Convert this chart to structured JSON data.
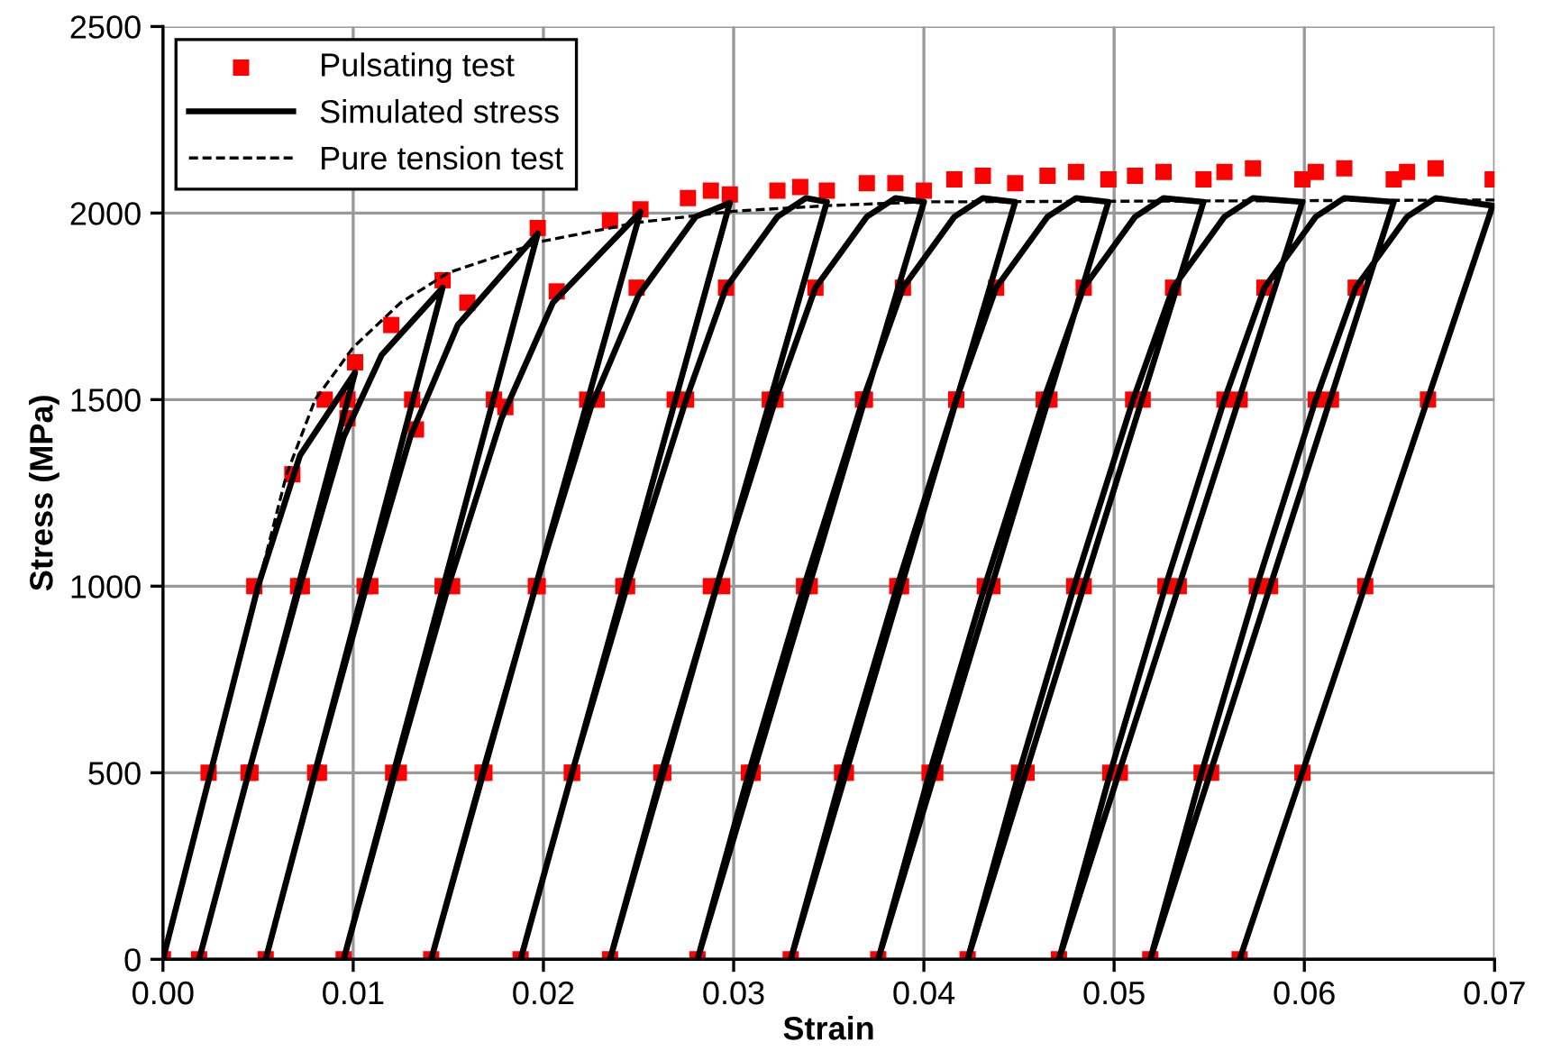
{
  "chart_data": {
    "type": "line",
    "xlabel": "Strain",
    "ylabel": "Stress (MPa)",
    "xlim": [
      0,
      0.07
    ],
    "xticks": [
      {
        "value": 0,
        "label": "0.00"
      },
      {
        "value": 0.01,
        "label": "0.01"
      },
      {
        "value": 0.02,
        "label": "0.02"
      },
      {
        "value": 0.03,
        "label": "0.03"
      },
      {
        "value": 0.04,
        "label": "0.04"
      },
      {
        "value": 0.05,
        "label": "0.05"
      },
      {
        "value": 0.06,
        "label": "0.06"
      },
      {
        "value": 0.07,
        "label": "0.07"
      }
    ],
    "ylim": [
      0,
      2500
    ],
    "yticks": [
      0,
      500,
      1000,
      1500,
      2000,
      2500
    ],
    "grid": true,
    "legend": "top left",
    "series": [
      {
        "name": "Pulsating test",
        "type": "scatter",
        "marker": "square",
        "color": "#ff0000",
        "x": [
          0,
          0.0024,
          0.0048,
          0.0068,
          0.0085,
          0.0101,
          0.0045,
          0.0071,
          0.0097,
          0.0019,
          0.0046,
          0.0073,
          0.0097,
          0.012,
          0.0147,
          0.008,
          0.0106,
          0.0131,
          0.0054,
          0.0082,
          0.0109,
          0.0133,
          0.016,
          0.0197,
          0.0121,
          0.0147,
          0.0174,
          0.0095,
          0.0124,
          0.0152,
          0.018,
          0.0207,
          0.0235,
          0.0251,
          0.0169,
          0.0196,
          0.0223,
          0.0141,
          0.0168,
          0.0197,
          0.0228,
          0.0249,
          0.0276,
          0.0288,
          0.0298,
          0.0215,
          0.0242,
          0.0269,
          0.0188,
          0.0215,
          0.0244,
          0.0275,
          0.0296,
          0.0323,
          0.0335,
          0.0349,
          0.0263,
          0.0288,
          0.0319,
          0.0235,
          0.0262,
          0.0294,
          0.0322,
          0.0343,
          0.037,
          0.0385,
          0.04,
          0.031,
          0.034,
          0.0369,
          0.0281,
          0.0308,
          0.0337,
          0.0368,
          0.0389,
          0.0416,
          0.0431,
          0.0448,
          0.0359,
          0.0388,
          0.0417,
          0.033,
          0.0357,
          0.0386,
          0.0417,
          0.0438,
          0.0465,
          0.048,
          0.0497,
          0.0406,
          0.0436,
          0.0466,
          0.0376,
          0.0403,
          0.0432,
          0.0463,
          0.0484,
          0.0511,
          0.0526,
          0.0547,
          0.0454,
          0.0484,
          0.0515,
          0.0423,
          0.045,
          0.0479,
          0.051,
          0.0531,
          0.0558,
          0.0573,
          0.0599,
          0.0503,
          0.0534,
          0.0566,
          0.0471,
          0.0498,
          0.0527,
          0.0558,
          0.0579,
          0.0606,
          0.0621,
          0.0647,
          0.0551,
          0.0582,
          0.0614,
          0.0519,
          0.0546,
          0.0575,
          0.0606,
          0.0627,
          0.0654,
          0.0669,
          0.0699,
          0.0599,
          0.0632,
          0.0665,
          0.0566
        ],
        "values": [
          0,
          500,
          1000,
          1300,
          1500,
          1600,
          500,
          1000,
          1500,
          0,
          500,
          1000,
          1450,
          1700,
          1820,
          500,
          1000,
          1500,
          0,
          500,
          1000,
          1420,
          1760,
          1960,
          500,
          1000,
          1500,
          0,
          500,
          1000,
          1480,
          1790,
          1980,
          2010,
          500,
          1000,
          1500,
          0,
          500,
          1000,
          1500,
          1800,
          2040,
          2060,
          2050,
          500,
          1000,
          1500,
          0,
          500,
          1000,
          1500,
          1800,
          2060,
          2070,
          2060,
          500,
          1000,
          1500,
          0,
          500,
          1000,
          1500,
          1800,
          2080,
          2080,
          2060,
          500,
          1000,
          1500,
          0,
          500,
          1000,
          1500,
          1800,
          2090,
          2100,
          2080,
          500,
          1000,
          1500,
          0,
          500,
          1000,
          1500,
          1800,
          2100,
          2110,
          2090,
          500,
          1000,
          1500,
          0,
          500,
          1000,
          1500,
          1800,
          2100,
          2110,
          2090,
          500,
          1000,
          1500,
          0,
          500,
          1000,
          1500,
          1800,
          2110,
          2120,
          2090,
          500,
          1000,
          1500,
          0,
          500,
          1000,
          1500,
          1800,
          2110,
          2120,
          2090,
          500,
          1000,
          1500,
          0,
          500,
          1000,
          1500,
          1800,
          2110,
          2120,
          2090,
          500,
          1000,
          1500,
          0
        ]
      },
      {
        "name": "Simulated stress",
        "line_style": "solid",
        "color": "#000000",
        "x": [
          0,
          0.0025,
          0.005,
          0.0072,
          0.0101,
          0.0019,
          0.0045,
          0.0072,
          0.0095,
          0.0115,
          0.0147,
          0.0054,
          0.008,
          0.0107,
          0.013,
          0.0155,
          0.0197,
          0.0095,
          0.0122,
          0.015,
          0.0178,
          0.0205,
          0.0251,
          0.0141,
          0.0168,
          0.0196,
          0.0225,
          0.025,
          0.028,
          0.0298,
          0.0188,
          0.0215,
          0.0244,
          0.0275,
          0.0296,
          0.0323,
          0.0338,
          0.0349,
          0.0235,
          0.0262,
          0.0291,
          0.0322,
          0.0343,
          0.037,
          0.0385,
          0.04,
          0.0281,
          0.0308,
          0.0337,
          0.0368,
          0.0389,
          0.0416,
          0.0431,
          0.0448,
          0.033,
          0.0357,
          0.0386,
          0.0417,
          0.0438,
          0.0465,
          0.048,
          0.0497,
          0.0376,
          0.0403,
          0.0432,
          0.0463,
          0.0484,
          0.0511,
          0.0526,
          0.0547,
          0.0423,
          0.045,
          0.0479,
          0.051,
          0.0531,
          0.0558,
          0.0573,
          0.0599,
          0.0471,
          0.0498,
          0.0527,
          0.0558,
          0.0579,
          0.0606,
          0.0621,
          0.0647,
          0.0519,
          0.0546,
          0.0575,
          0.0606,
          0.0627,
          0.0654,
          0.0669,
          0.0699,
          0.0566
        ],
        "values": [
          0,
          500,
          1000,
          1350,
          1573,
          0,
          500,
          1000,
          1400,
          1620,
          1800,
          0,
          500,
          1000,
          1400,
          1700,
          1945,
          0,
          500,
          1000,
          1450,
          1760,
          2003,
          0,
          500,
          1000,
          1480,
          1780,
          1990,
          2027,
          0,
          500,
          1000,
          1500,
          1800,
          1990,
          2040,
          2030,
          0,
          500,
          1000,
          1500,
          1800,
          1990,
          2040,
          2030,
          0,
          500,
          1000,
          1500,
          1800,
          1990,
          2040,
          2030,
          0,
          500,
          1000,
          1500,
          1800,
          1990,
          2040,
          2030,
          0,
          500,
          1000,
          1500,
          1800,
          1990,
          2040,
          2030,
          0,
          500,
          1000,
          1500,
          1800,
          1990,
          2040,
          2030,
          0,
          500,
          1000,
          1500,
          1800,
          1990,
          2040,
          2030,
          0,
          500,
          1000,
          1500,
          1800,
          1990,
          2040,
          2020,
          0
        ]
      },
      {
        "name": "Pure tension test",
        "line_style": "dashed",
        "color": "#000000",
        "x": [
          0,
          0.0025,
          0.005,
          0.0065,
          0.008,
          0.01,
          0.0125,
          0.015,
          0.02,
          0.025,
          0.03,
          0.035,
          0.04,
          0.07
        ],
        "values": [
          0,
          500,
          1000,
          1300,
          1500,
          1640,
          1760,
          1840,
          1925,
          1975,
          2005,
          2020,
          2030,
          2035
        ]
      }
    ]
  }
}
